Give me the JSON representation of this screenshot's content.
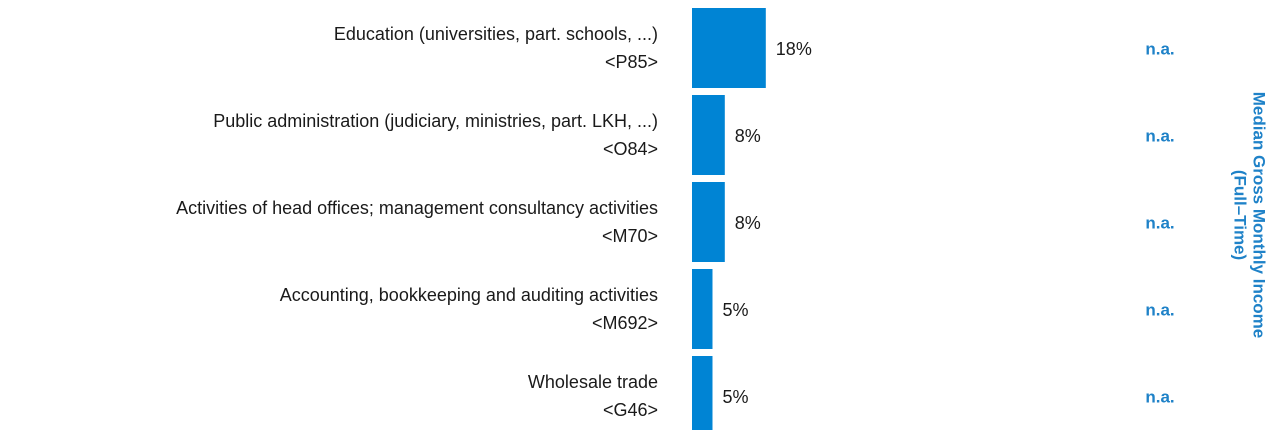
{
  "chart_data": {
    "type": "bar",
    "orientation": "horizontal",
    "categories": [
      "Education (universities, part. schools, ...)",
      "Public administration (judiciary, ministries, part. LKH, ...)",
      "Activities of head offices; management consultancy activities",
      "Accounting, bookkeeping and auditing activities",
      "Wholesale trade"
    ],
    "codes": [
      "<P85>",
      "<O84>",
      "<M70>",
      "<M692>",
      "<G46>"
    ],
    "values": [
      18,
      8,
      8,
      5,
      5
    ],
    "value_labels": [
      "18%",
      "8%",
      "8%",
      "5%",
      "5%"
    ],
    "color": "#0084d4",
    "income_values": [
      "n.a.",
      "n.a.",
      "n.a.",
      "n.a.",
      "n.a."
    ],
    "income_title": [
      "Median Gross Monthly Income",
      "(Full–Time)"
    ]
  }
}
